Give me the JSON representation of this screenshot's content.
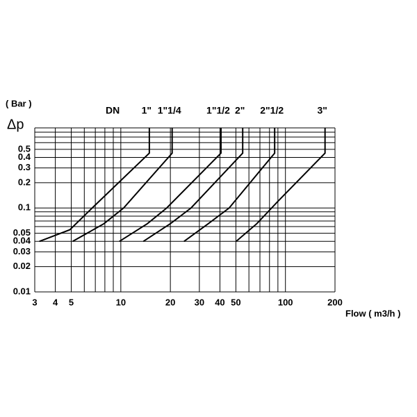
{
  "chart_data": {
    "type": "line",
    "y_label": "( Bar )",
    "y_symbol": "Δp",
    "x_label": "Flow ( m3/h )",
    "legend_title": "DN",
    "log_x": true,
    "log_y": true,
    "grid": true,
    "color": "#000000",
    "xlim": [
      3,
      200
    ],
    "xticks": [
      3,
      4,
      5,
      10,
      20,
      30,
      40,
      50,
      100,
      200
    ],
    "x_minor_grid": [
      6,
      7,
      8,
      9,
      60,
      70,
      80,
      90
    ],
    "ylim": [
      0.01,
      0.9
    ],
    "yticks": [
      0.01,
      0.02,
      0.03,
      0.04,
      0.05,
      0.1,
      0.2,
      0.3,
      0.4,
      0.5
    ],
    "y_minor_grid": [
      0.06,
      0.07,
      0.08,
      0.09,
      0.6,
      0.7,
      0.8
    ],
    "series": [
      {
        "name": "1\"",
        "x": [
          3.2,
          4.9,
          6.7,
          14.9,
          14.9
        ],
        "values": [
          0.04,
          0.055,
          0.1,
          0.45,
          0.9
        ]
      },
      {
        "name": "1\"1/4",
        "x": [
          5.1,
          7.9,
          10.4,
          20.5,
          20.5
        ],
        "values": [
          0.04,
          0.065,
          0.1,
          0.45,
          0.9
        ]
      },
      {
        "name": "1\"1/2",
        "x": [
          9.8,
          14.5,
          19,
          40.6,
          40.6
        ],
        "values": [
          0.04,
          0.065,
          0.1,
          0.45,
          0.9
        ]
      },
      {
        "name": "2\"",
        "x": [
          13.7,
          20,
          26.7,
          55,
          55
        ],
        "values": [
          0.04,
          0.065,
          0.1,
          0.45,
          0.9
        ]
      },
      {
        "name": "2\"1/2",
        "x": [
          24.2,
          34,
          45.5,
          86,
          86
        ],
        "values": [
          0.04,
          0.065,
          0.1,
          0.45,
          0.9
        ]
      },
      {
        "name": "3\"",
        "x": [
          50.2,
          67,
          90,
          174,
          174
        ],
        "values": [
          0.04,
          0.065,
          0.12,
          0.45,
          0.9
        ]
      }
    ]
  }
}
